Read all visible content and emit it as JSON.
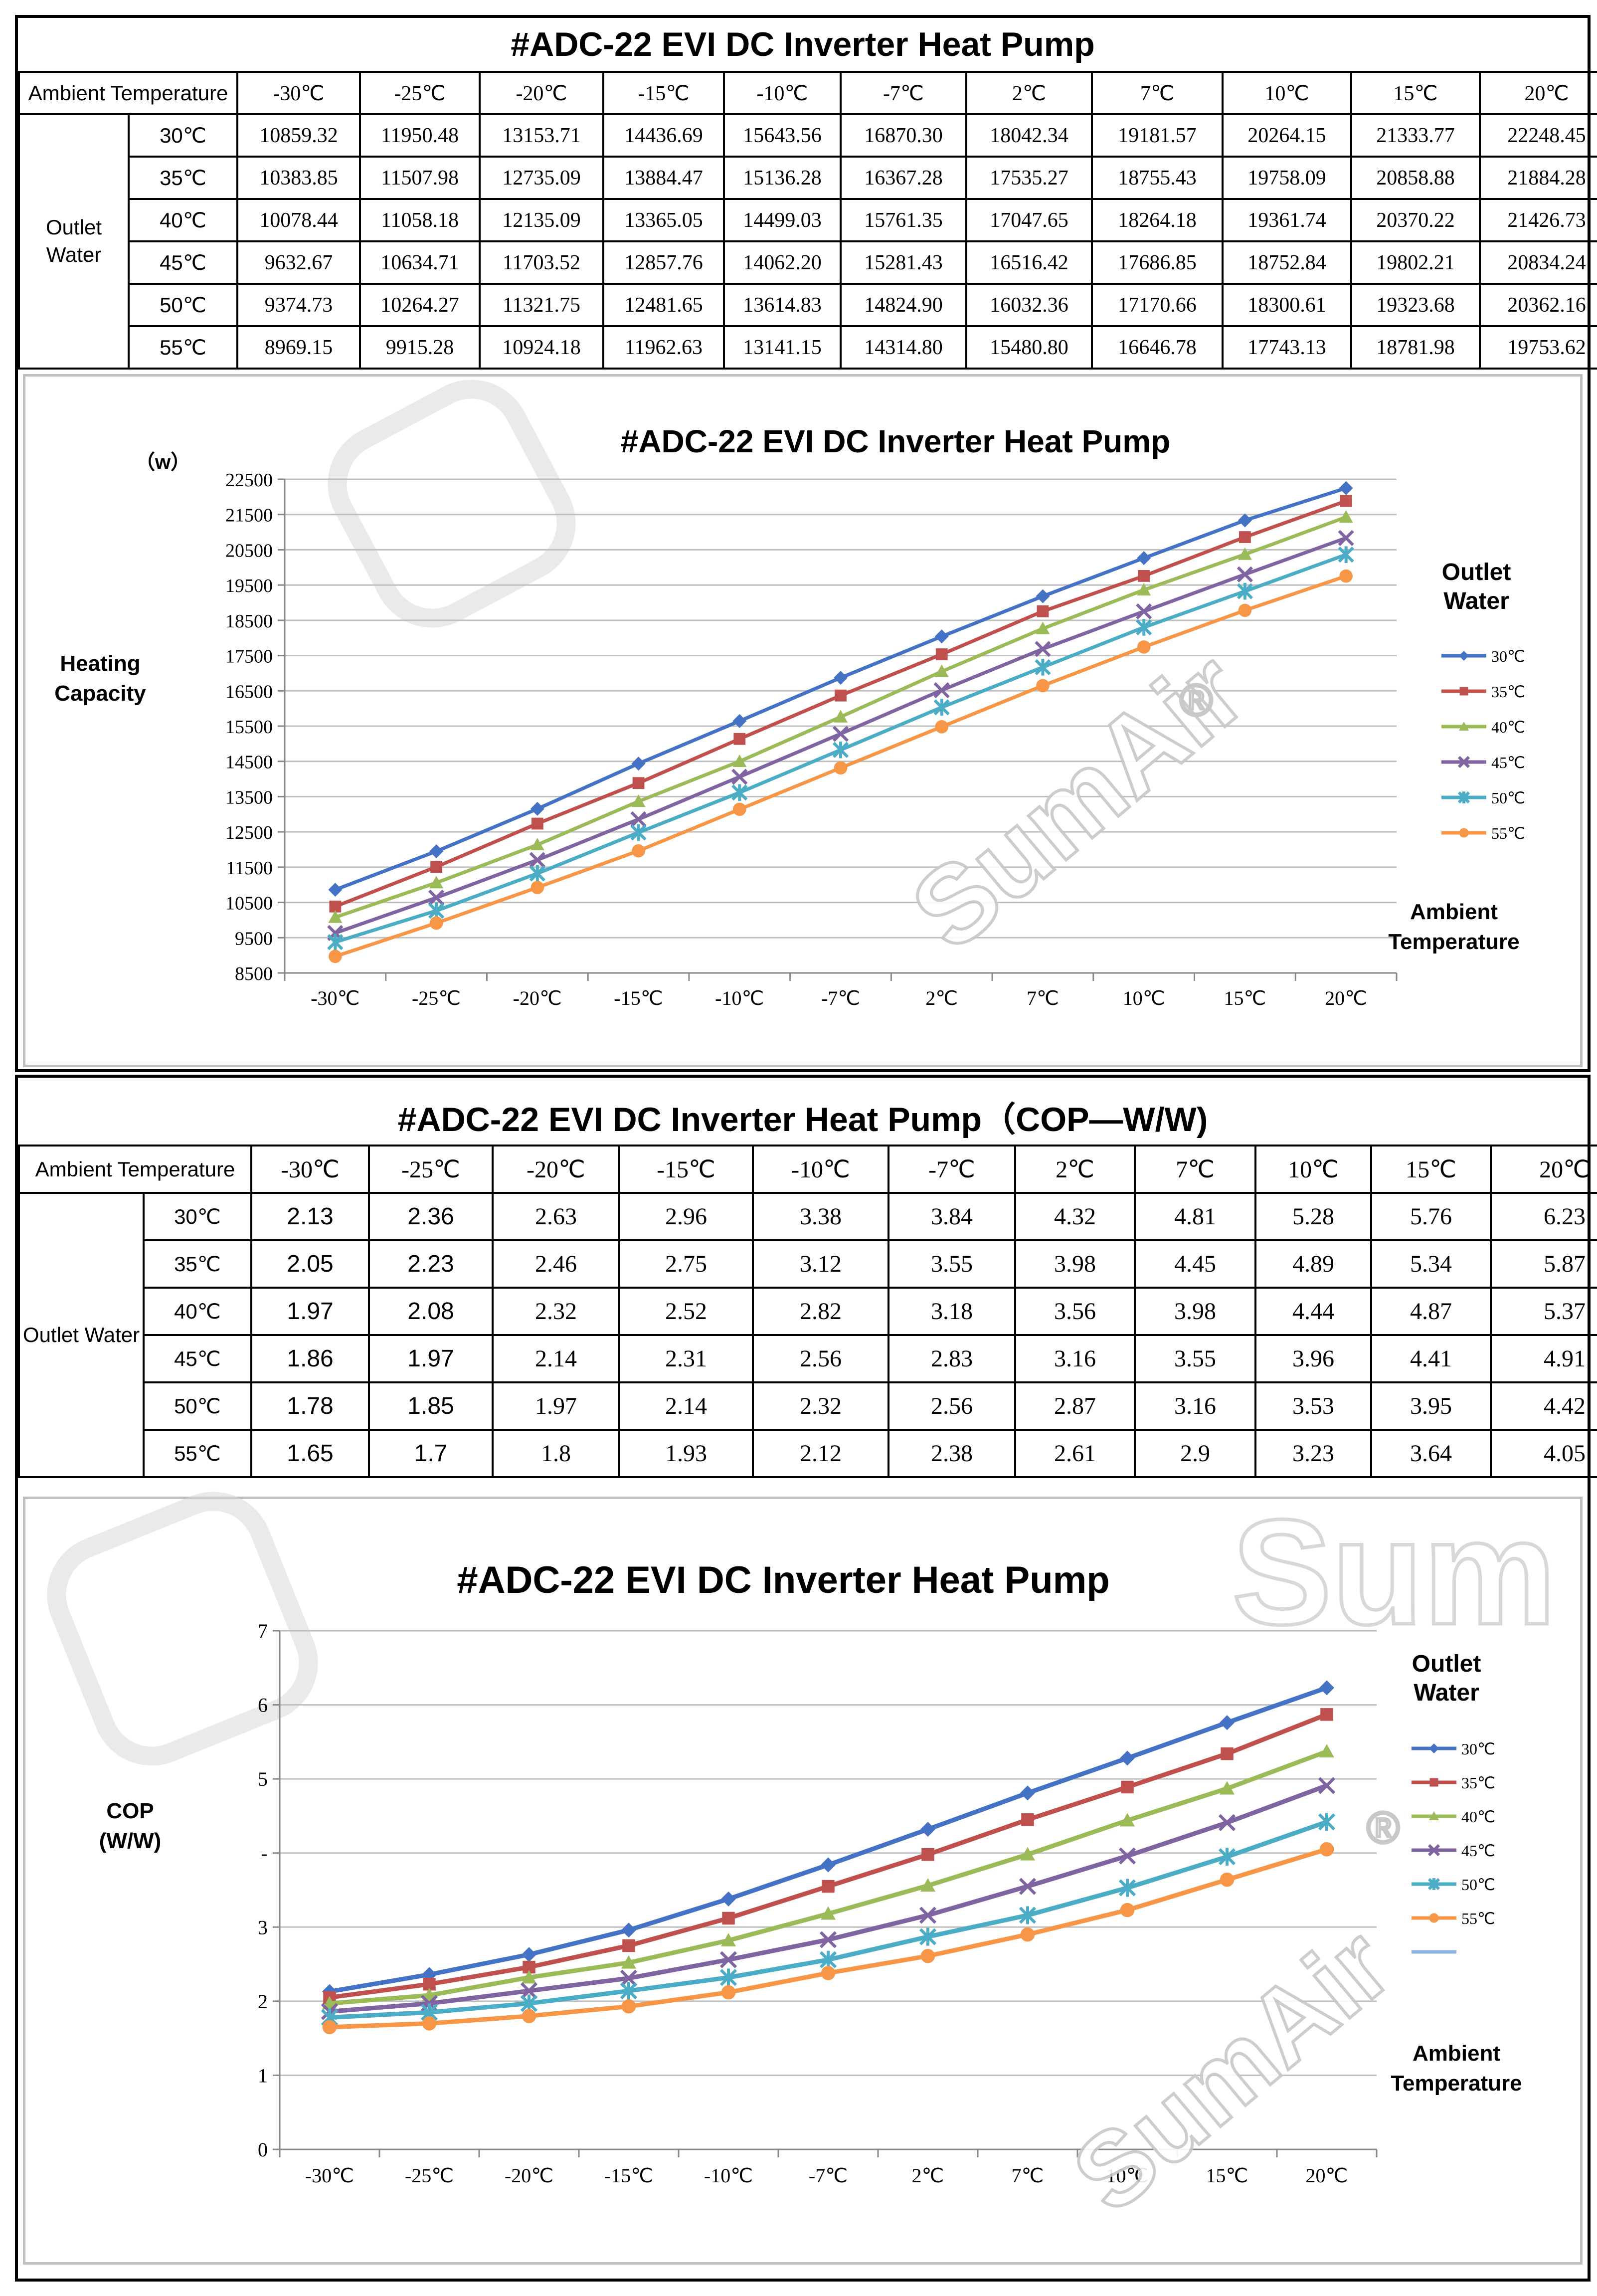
{
  "ambient_header": "Ambient Temperature",
  "outlet_water_label": "Outlet Water",
  "brand": {
    "watermark": "SumAir",
    "registered": "®",
    "partial_watermark": "Sum"
  },
  "colors": {
    "series": [
      "#4472C4",
      "#C0504D",
      "#9BBB59",
      "#8064A2",
      "#4BACC6",
      "#F79646"
    ],
    "gridline": "#bfbfbf",
    "chart_border": "#bfbfbf"
  },
  "temperatures": [
    "-30℃",
    "-25℃",
    "-20℃",
    "-15℃",
    "-10℃",
    "-7℃",
    "2℃",
    "7℃",
    "10℃",
    "15℃",
    "20℃"
  ],
  "outlet_temps": [
    "30℃",
    "35℃",
    "40℃",
    "45℃",
    "50℃",
    "55℃"
  ],
  "capacity_table": {
    "title": "#ADC-22 EVI DC Inverter Heat Pump",
    "rows": [
      [
        "10859.32",
        "11950.48",
        "13153.71",
        "14436.69",
        "15643.56",
        "16870.30",
        "18042.34",
        "19181.57",
        "20264.15",
        "21333.77",
        "22248.45"
      ],
      [
        "10383.85",
        "11507.98",
        "12735.09",
        "13884.47",
        "15136.28",
        "16367.28",
        "17535.27",
        "18755.43",
        "19758.09",
        "20858.88",
        "21884.28"
      ],
      [
        "10078.44",
        "11058.18",
        "12135.09",
        "13365.05",
        "14499.03",
        "15761.35",
        "17047.65",
        "18264.18",
        "19361.74",
        "20370.22",
        "21426.73"
      ],
      [
        "9632.67",
        "10634.71",
        "11703.52",
        "12857.76",
        "14062.20",
        "15281.43",
        "16516.42",
        "17686.85",
        "18752.84",
        "19802.21",
        "20834.24"
      ],
      [
        "9374.73",
        "10264.27",
        "11321.75",
        "12481.65",
        "13614.83",
        "14824.90",
        "16032.36",
        "17170.66",
        "18300.61",
        "19323.68",
        "20362.16"
      ],
      [
        "8969.15",
        "9915.28",
        "10924.18",
        "11962.63",
        "13141.15",
        "14314.80",
        "15480.80",
        "16646.78",
        "17743.13",
        "18781.98",
        "19753.62"
      ]
    ]
  },
  "cop_table": {
    "title": "#ADC-22 EVI DC Inverter Heat Pump（COP—W/W)",
    "rows": [
      [
        "2.13",
        "2.36",
        "2.63",
        "2.96",
        "3.38",
        "3.84",
        "4.32",
        "4.81",
        "5.28",
        "5.76",
        "6.23"
      ],
      [
        "2.05",
        "2.23",
        "2.46",
        "2.75",
        "3.12",
        "3.55",
        "3.98",
        "4.45",
        "4.89",
        "5.34",
        "5.87"
      ],
      [
        "1.97",
        "2.08",
        "2.32",
        "2.52",
        "2.82",
        "3.18",
        "3.56",
        "3.98",
        "4.44",
        "4.87",
        "5.37"
      ],
      [
        "1.86",
        "1.97",
        "2.14",
        "2.31",
        "2.56",
        "2.83",
        "3.16",
        "3.55",
        "3.96",
        "4.41",
        "4.91"
      ],
      [
        "1.78",
        "1.85",
        "1.97",
        "2.14",
        "2.32",
        "2.56",
        "2.87",
        "3.16",
        "3.53",
        "3.95",
        "4.42"
      ],
      [
        "1.65",
        "1.7",
        "1.8",
        "1.93",
        "2.12",
        "2.38",
        "2.61",
        "2.9",
        "3.23",
        "3.64",
        "4.05"
      ]
    ]
  },
  "chart_data": [
    {
      "type": "line",
      "title": "#ADC-22 EVI DC Inverter Heat Pump",
      "unit_label": "（w）",
      "ylabel": "Heating Capacity",
      "xlabel": "Ambient Temperature",
      "legend_title": "Outlet Water",
      "legend_position": "right",
      "grid": true,
      "ylim": [
        8500,
        22500
      ],
      "yticks": [
        "22500",
        "21500",
        "20500",
        "19500",
        "18500",
        "17500",
        "16500",
        "15500",
        "14500",
        "13500",
        "12500",
        "11500",
        "10500",
        "9500",
        "8500"
      ],
      "categories": [
        "-30℃",
        "-25℃",
        "-20℃",
        "-15℃",
        "-10℃",
        "-7℃",
        "2℃",
        "7℃",
        "10℃",
        "15℃",
        "20℃"
      ],
      "series": [
        {
          "name": "30℃",
          "marker": "diamond",
          "values": [
            10859.32,
            11950.48,
            13153.71,
            14436.69,
            15643.56,
            16870.3,
            18042.34,
            19181.57,
            20264.15,
            21333.77,
            22248.45
          ]
        },
        {
          "name": "35℃",
          "marker": "square",
          "values": [
            10383.85,
            11507.98,
            12735.09,
            13884.47,
            15136.28,
            16367.28,
            17535.27,
            18755.43,
            19758.09,
            20858.88,
            21884.28
          ]
        },
        {
          "name": "40℃",
          "marker": "triangle",
          "values": [
            10078.44,
            11058.18,
            12135.09,
            13365.05,
            14499.03,
            15761.35,
            17047.65,
            18264.18,
            19361.74,
            20370.22,
            21426.73
          ]
        },
        {
          "name": "45℃",
          "marker": "x",
          "values": [
            9632.67,
            10634.71,
            11703.52,
            12857.76,
            14062.2,
            15281.43,
            16516.42,
            17686.85,
            18752.84,
            19802.21,
            20834.24
          ]
        },
        {
          "name": "50℃",
          "marker": "star",
          "values": [
            9374.73,
            10264.27,
            11321.75,
            12481.65,
            13614.83,
            14824.9,
            16032.36,
            17170.66,
            18300.61,
            19323.68,
            20362.16
          ]
        },
        {
          "name": "55℃",
          "marker": "circle",
          "values": [
            8969.15,
            9915.28,
            10924.18,
            11962.63,
            13141.15,
            14314.8,
            15480.8,
            16646.78,
            17743.13,
            18781.98,
            19753.62
          ]
        }
      ]
    },
    {
      "type": "line",
      "title": "#ADC-22 EVI  DC Inverter Heat Pump",
      "ylabel": "COP (W/W)",
      "xlabel": "Ambient Temperature",
      "legend_title": "Outlet Water",
      "legend_position": "right",
      "grid": true,
      "ylim": [
        0,
        7
      ],
      "yticks": [
        "7",
        "6",
        "5",
        "-",
        "3",
        "2",
        "1",
        "0"
      ],
      "categories": [
        "-30℃",
        "-25℃",
        "-20℃",
        "-15℃",
        "-10℃",
        "-7℃",
        "2℃",
        "7℃",
        "10℃",
        "15℃",
        "20℃"
      ],
      "series": [
        {
          "name": "30℃",
          "marker": "diamond",
          "values": [
            2.13,
            2.36,
            2.63,
            2.96,
            3.38,
            3.84,
            4.32,
            4.81,
            5.28,
            5.76,
            6.23
          ]
        },
        {
          "name": "35℃",
          "marker": "square",
          "values": [
            2.05,
            2.23,
            2.46,
            2.75,
            3.12,
            3.55,
            3.98,
            4.45,
            4.89,
            5.34,
            5.87
          ]
        },
        {
          "name": "40℃",
          "marker": "triangle",
          "values": [
            1.97,
            2.08,
            2.32,
            2.52,
            2.82,
            3.18,
            3.56,
            3.98,
            4.44,
            4.87,
            5.37
          ]
        },
        {
          "name": "45℃",
          "marker": "x",
          "values": [
            1.86,
            1.97,
            2.14,
            2.31,
            2.56,
            2.83,
            3.16,
            3.55,
            3.96,
            4.41,
            4.91
          ]
        },
        {
          "name": "50℃",
          "marker": "star",
          "values": [
            1.78,
            1.85,
            1.97,
            2.14,
            2.32,
            2.56,
            2.87,
            3.16,
            3.53,
            3.95,
            4.42
          ]
        },
        {
          "name": "55℃",
          "marker": "circle",
          "values": [
            1.65,
            1.7,
            1.8,
            1.93,
            2.12,
            2.38,
            2.61,
            2.9,
            3.23,
            3.64,
            4.05
          ]
        }
      ],
      "extra_legend_entry": {
        "name": "",
        "color": "#8EB4E3"
      }
    }
  ]
}
